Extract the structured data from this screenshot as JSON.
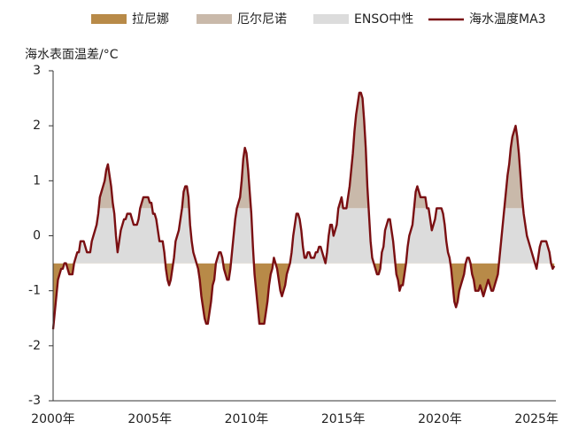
{
  "chart_data": {
    "type": "line",
    "y_label": "海水表面温差/°C",
    "bands": [
      {
        "name": "拉尼娜",
        "color": "#b88a48"
      },
      {
        "name": "厄尔尼诺",
        "color": "#c9b9aa"
      },
      {
        "name": "ENSO中性",
        "color": "#dcdcdc"
      }
    ],
    "categories": [
      "2000年",
      null,
      null,
      null,
      null,
      null,
      null,
      null,
      null,
      null,
      null,
      null,
      null,
      null,
      null,
      null,
      null,
      null,
      null,
      null,
      null,
      null,
      null,
      null,
      null,
      null,
      null,
      null,
      null,
      null,
      null,
      null,
      null,
      null,
      null,
      null,
      null,
      null,
      null,
      null,
      null,
      null,
      null,
      null,
      null,
      null,
      null,
      null,
      null,
      null,
      null,
      null,
      null,
      null,
      null,
      null,
      null,
      null,
      null,
      null,
      "2005年",
      null,
      null,
      null,
      null,
      null,
      null,
      null,
      null,
      null,
      null,
      null,
      null,
      null,
      null,
      null,
      null,
      null,
      null,
      null,
      null,
      null,
      null,
      null,
      null,
      null,
      null,
      null,
      null,
      null,
      null,
      null,
      null,
      null,
      null,
      null,
      null,
      null,
      null,
      null,
      null,
      null,
      null,
      null,
      null,
      null,
      null,
      null,
      null,
      null,
      null,
      null,
      null,
      null,
      null,
      null,
      null,
      null,
      null,
      null,
      "2010年",
      null,
      null,
      null,
      null,
      null,
      null,
      null,
      null,
      null,
      null,
      null,
      null,
      null,
      null,
      null,
      null,
      null,
      null,
      null,
      null,
      null,
      null,
      null,
      null,
      null,
      null,
      null,
      null,
      null,
      null,
      null,
      null,
      null,
      null,
      null,
      null,
      null,
      null,
      null,
      null,
      null,
      null,
      null,
      null,
      null,
      null,
      null,
      null,
      null,
      null,
      null,
      null,
      null,
      null,
      null,
      null,
      null,
      null,
      null,
      "2015年",
      null,
      null,
      null,
      null,
      null,
      null,
      null,
      null,
      null,
      null,
      null,
      null,
      null,
      null,
      null,
      null,
      null,
      null,
      null,
      null,
      null,
      null,
      null,
      null,
      null,
      null,
      null,
      null,
      null,
      null,
      null,
      null,
      null,
      null,
      null,
      null,
      null,
      null,
      null,
      null,
      null,
      null,
      null,
      null,
      null,
      null,
      null,
      null,
      null,
      null,
      null,
      null,
      null,
      null,
      null,
      null,
      null,
      null,
      null,
      "2020年",
      null,
      null,
      null,
      null,
      null,
      null,
      null,
      null,
      null,
      null,
      null,
      null,
      null,
      null,
      null,
      null,
      null,
      null,
      null,
      null,
      null,
      null,
      null,
      null,
      null,
      null,
      null,
      null,
      null,
      null,
      null,
      null,
      null,
      null,
      null,
      null,
      null,
      null,
      null,
      null,
      null,
      null,
      null,
      null,
      null,
      null,
      null,
      null,
      null,
      null,
      null,
      null,
      null,
      null,
      null,
      null,
      null,
      null,
      null,
      "2025年",
      null,
      null,
      null,
      null,
      null,
      null,
      null,
      null,
      null,
      null,
      null
    ],
    "series": [
      {
        "name": "海水温度MA3",
        "color": "#7a0f12",
        "values": [
          -1.7,
          -1.4,
          -1.1,
          -0.8,
          -0.7,
          -0.6,
          -0.6,
          -0.5,
          -0.5,
          -0.6,
          -0.7,
          -0.7,
          -0.7,
          -0.5,
          -0.4,
          -0.3,
          -0.3,
          -0.1,
          -0.1,
          -0.1,
          -0.2,
          -0.3,
          -0.3,
          -0.3,
          -0.1,
          0.0,
          0.1,
          0.2,
          0.4,
          0.7,
          0.8,
          0.9,
          1.0,
          1.2,
          1.3,
          1.1,
          0.9,
          0.6,
          0.4,
          0.0,
          -0.3,
          -0.1,
          0.1,
          0.2,
          0.3,
          0.3,
          0.4,
          0.4,
          0.4,
          0.3,
          0.2,
          0.2,
          0.2,
          0.3,
          0.5,
          0.6,
          0.7,
          0.7,
          0.7,
          0.7,
          0.6,
          0.6,
          0.4,
          0.4,
          0.3,
          0.1,
          -0.1,
          -0.1,
          -0.1,
          -0.3,
          -0.6,
          -0.8,
          -0.9,
          -0.8,
          -0.6,
          -0.4,
          -0.1,
          0.0,
          0.1,
          0.3,
          0.5,
          0.8,
          0.9,
          0.9,
          0.7,
          0.2,
          -0.1,
          -0.3,
          -0.4,
          -0.5,
          -0.6,
          -0.8,
          -1.1,
          -1.3,
          -1.5,
          -1.6,
          -1.6,
          -1.4,
          -1.2,
          -0.9,
          -0.8,
          -0.5,
          -0.4,
          -0.3,
          -0.3,
          -0.4,
          -0.6,
          -0.7,
          -0.8,
          -0.8,
          -0.6,
          -0.3,
          0.0,
          0.3,
          0.5,
          0.6,
          0.7,
          1.0,
          1.4,
          1.6,
          1.5,
          1.2,
          0.8,
          0.4,
          -0.2,
          -0.7,
          -1.0,
          -1.3,
          -1.6,
          -1.6,
          -1.6,
          -1.6,
          -1.4,
          -1.2,
          -0.9,
          -0.7,
          -0.6,
          -0.4,
          -0.5,
          -0.6,
          -0.8,
          -1.0,
          -1.1,
          -1.0,
          -0.9,
          -0.7,
          -0.6,
          -0.5,
          -0.3,
          0.0,
          0.2,
          0.4,
          0.4,
          0.3,
          0.1,
          -0.2,
          -0.4,
          -0.4,
          -0.3,
          -0.3,
          -0.4,
          -0.4,
          -0.4,
          -0.3,
          -0.3,
          -0.2,
          -0.2,
          -0.3,
          -0.4,
          -0.5,
          -0.3,
          0.0,
          0.2,
          0.2,
          0.0,
          0.1,
          0.2,
          0.5,
          0.6,
          0.7,
          0.5,
          0.5,
          0.5,
          0.7,
          0.9,
          1.2,
          1.5,
          1.9,
          2.2,
          2.4,
          2.6,
          2.6,
          2.5,
          2.1,
          1.6,
          0.9,
          0.4,
          -0.1,
          -0.4,
          -0.5,
          -0.6,
          -0.7,
          -0.7,
          -0.6,
          -0.3,
          -0.2,
          0.1,
          0.2,
          0.3,
          0.3,
          0.1,
          -0.1,
          -0.4,
          -0.7,
          -0.8,
          -1.0,
          -0.9,
          -0.9,
          -0.7,
          -0.5,
          -0.2,
          0.0,
          0.1,
          0.2,
          0.5,
          0.8,
          0.9,
          0.8,
          0.7,
          0.7,
          0.7,
          0.7,
          0.5,
          0.5,
          0.3,
          0.1,
          0.2,
          0.3,
          0.5,
          0.5,
          0.5,
          0.5,
          0.4,
          0.2,
          -0.1,
          -0.3,
          -0.4,
          -0.6,
          -0.9,
          -1.2,
          -1.3,
          -1.2,
          -1.0,
          -0.9,
          -0.8,
          -0.7,
          -0.5,
          -0.4,
          -0.4,
          -0.5,
          -0.7,
          -0.8,
          -1.0,
          -1.0,
          -1.0,
          -0.9,
          -1.0,
          -1.1,
          -1.0,
          -0.9,
          -0.8,
          -0.9,
          -1.0,
          -1.0,
          -0.9,
          -0.8,
          -0.7,
          -0.4,
          -0.1,
          0.2,
          0.5,
          0.8,
          1.1,
          1.3,
          1.6,
          1.8,
          1.9,
          2.0,
          1.8,
          1.5,
          1.1,
          0.7,
          0.4,
          0.2,
          0.0,
          -0.1,
          -0.2,
          -0.3,
          -0.4,
          -0.5,
          -0.6,
          -0.4,
          -0.2,
          -0.1,
          -0.1,
          -0.1,
          -0.1,
          -0.2,
          -0.3,
          -0.5,
          -0.6,
          -0.55
        ]
      }
    ],
    "ylim": [
      -3,
      3
    ],
    "yticks": [
      -3,
      -2,
      -1,
      0,
      1,
      2,
      3
    ]
  }
}
